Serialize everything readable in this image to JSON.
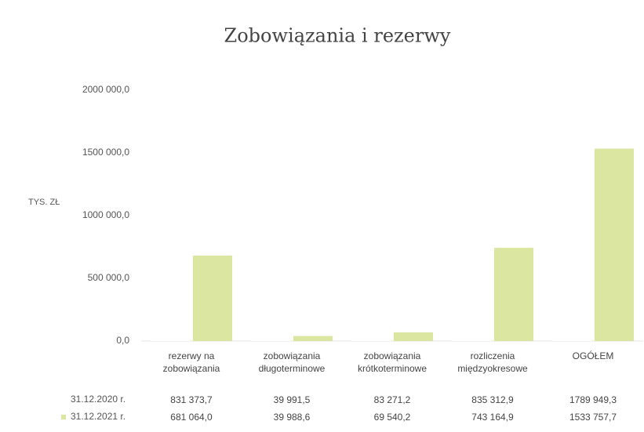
{
  "chart_data": {
    "type": "bar",
    "title": "Zobowiązania i rezerwy",
    "y_label": "TYS. ZŁ",
    "categories": [
      "rezerwy na zobowiązania",
      "zobowiązania długoterminowe",
      "zobowiązania krótkoterminowe",
      "rozliczenia międzyokresowe",
      "OGÓŁEM"
    ],
    "series": [
      {
        "name": "31.12.2020 r.",
        "color": "#ffffff",
        "values": [
          831373.7,
          39991.5,
          83271.2,
          835312.9,
          1789949.3
        ],
        "value_labels": [
          "831 373,7",
          "39 991,5",
          "83 271,2",
          "835 312,9",
          "1789 949,3"
        ]
      },
      {
        "name": "31.12.2021 r.",
        "color": "#dbe6a0",
        "values": [
          681064.0,
          39988.6,
          69540.2,
          743164.9,
          1533757.7
        ],
        "value_labels": [
          "681 064,0",
          "39 988,6",
          "69 540,2",
          "743 164,9",
          "1533 757,7"
        ]
      }
    ],
    "ylim": [
      0,
      2000000
    ],
    "yticks": [
      {
        "value": 0,
        "label": "0,0"
      },
      {
        "value": 500000,
        "label": "500 000,0"
      },
      {
        "value": 1000000,
        "label": "1000 000,0"
      },
      {
        "value": 1500000,
        "label": "1500 000,0"
      },
      {
        "value": 2000000,
        "label": "2000 000,0"
      }
    ]
  }
}
